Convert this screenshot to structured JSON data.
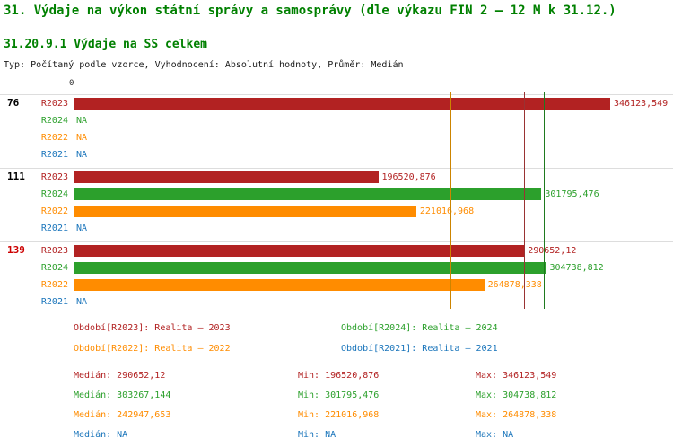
{
  "title": "31. Výdaje na výkon státní správy a samosprávy (dle výkazu FIN 2 – 12 M k 31.12.)",
  "subtitle": "31.20.9.1 Výdaje na SS celkem",
  "meta": "Typ: Počítaný podle vzorce, Vyhodnocení: Absolutní hodnoty, Průměr: Medián",
  "colors": {
    "title": "#008000",
    "group_label": "#000000",
    "group_label_highlight": "#cc0000",
    "axis": "#777777",
    "grid": "#dddddd",
    "series": {
      "R2023": "#b22222",
      "R2024": "#2ca02c",
      "R2022": "#ff8c00",
      "R2021": "#1a75bb"
    },
    "median_lines": {
      "R2023": "#993333",
      "R2024": "#1f7a1f",
      "R2022": "#cc8400"
    }
  },
  "chart_data": {
    "type": "bar",
    "orientation": "horizontal",
    "x_axis": {
      "zero_label": "0"
    },
    "max_value": 346123.549,
    "groups": [
      {
        "label": "76",
        "highlight": false,
        "rows": [
          {
            "series": "R2023",
            "value": 346123.549,
            "display": "346123,549"
          },
          {
            "series": "R2024",
            "value": null,
            "display": "NA"
          },
          {
            "series": "R2022",
            "value": null,
            "display": "NA"
          },
          {
            "series": "R2021",
            "value": null,
            "display": "NA"
          }
        ]
      },
      {
        "label": "111",
        "highlight": false,
        "rows": [
          {
            "series": "R2023",
            "value": 196520.876,
            "display": "196520,876"
          },
          {
            "series": "R2024",
            "value": 301795.476,
            "display": "301795,476"
          },
          {
            "series": "R2022",
            "value": 221016.968,
            "display": "221016,968"
          },
          {
            "series": "R2021",
            "value": null,
            "display": "NA"
          }
        ]
      },
      {
        "label": "139",
        "highlight": true,
        "rows": [
          {
            "series": "R2023",
            "value": 290652.12,
            "display": "290652,12"
          },
          {
            "series": "R2024",
            "value": 304738.812,
            "display": "304738,812"
          },
          {
            "series": "R2022",
            "value": 264878.338,
            "display": "264878,338"
          },
          {
            "series": "R2021",
            "value": null,
            "display": "NA"
          }
        ]
      }
    ],
    "median_lines": [
      {
        "series": "R2022",
        "value": 242947.653
      },
      {
        "series": "R2023",
        "value": 290652.12
      },
      {
        "series": "R2024",
        "value": 303267.144
      }
    ],
    "legend": [
      {
        "series": "R2023",
        "label": "Období[R2023]: Realita – 2023"
      },
      {
        "series": "R2024",
        "label": "Období[R2024]: Realita – 2024"
      },
      {
        "series": "R2022",
        "label": "Období[R2022]: Realita – 2022"
      },
      {
        "series": "R2021",
        "label": "Období[R2021]: Realita – 2021"
      }
    ],
    "stats": [
      {
        "series": "R2023",
        "median": "Medián: 290652,12",
        "min": "Min: 196520,876",
        "max": "Max: 346123,549"
      },
      {
        "series": "R2024",
        "median": "Medián: 303267,144",
        "min": "Min: 301795,476",
        "max": "Max: 304738,812"
      },
      {
        "series": "R2022",
        "median": "Medián: 242947,653",
        "min": "Min: 221016,968",
        "max": "Max: 264878,338"
      },
      {
        "series": "R2021",
        "median": "Medián: NA",
        "min": "Min: NA",
        "max": "Max: NA"
      }
    ]
  }
}
